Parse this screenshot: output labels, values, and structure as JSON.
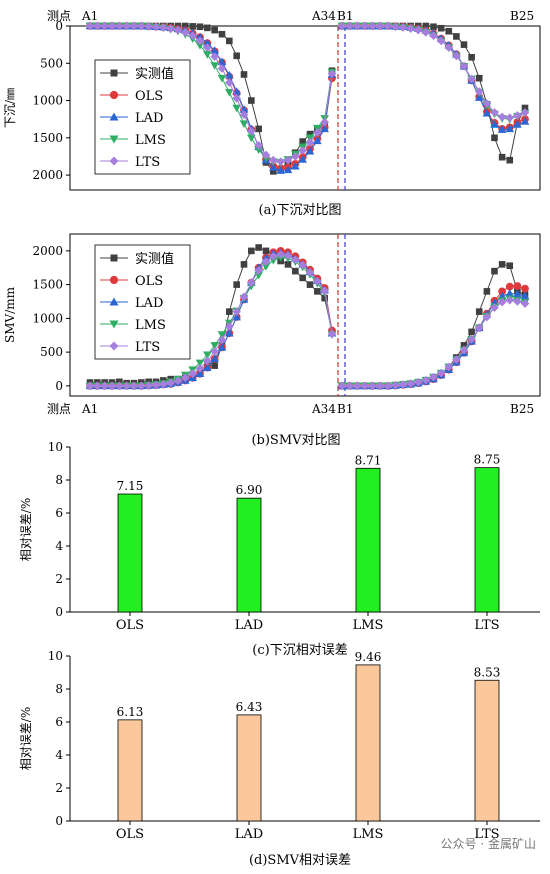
{
  "colors": {
    "measured": "#404040",
    "OLS": "#e0393b",
    "LAD": "#2a66d4",
    "LMS": "#2eae62",
    "LTS": "#a67fde",
    "bar_c": "#22ee22",
    "bar_d": "#fac89a",
    "dash_red": "#d23b3b",
    "dash_blue": "#4a4ac8"
  },
  "watermark": "公众号 · 金属矿山",
  "chart_data": [
    {
      "id": "a",
      "type": "line",
      "caption": "(a)下沉对比图",
      "ylabel": "下沉/㎜",
      "ylim": [
        0,
        2200
      ],
      "y_inverted": true,
      "yticks": [
        0,
        500,
        1000,
        1500,
        2000
      ],
      "point_label": "测点",
      "axis_points": {
        "start": "A1",
        "mid": "A34",
        "mid2": "B1",
        "end": "B25"
      },
      "legend": [
        "实测值",
        "OLS",
        "LAD",
        "LMS",
        "LTS"
      ],
      "series": [
        {
          "name": "实测值",
          "A": [
            0,
            0,
            0,
            0,
            0,
            0,
            0,
            0,
            0,
            0,
            0,
            0,
            0,
            0,
            5,
            10,
            25,
            55,
            110,
            200,
            400,
            650,
            1000,
            1380,
            1830,
            1950,
            1920,
            1820,
            1700,
            1550,
            1450,
            1380,
            1320,
            600
          ],
          "B": [
            0,
            0,
            0,
            0,
            0,
            0,
            0,
            0,
            0,
            0,
            0,
            0,
            10,
            30,
            70,
            140,
            250,
            420,
            700,
            1050,
            1500,
            1760,
            1800,
            1300,
            1100
          ]
        },
        {
          "name": "OLS",
          "A": [
            0,
            0,
            0,
            0,
            0,
            0,
            0,
            0,
            5,
            10,
            15,
            25,
            40,
            60,
            100,
            150,
            230,
            340,
            490,
            680,
            900,
            1130,
            1390,
            1620,
            1790,
            1880,
            1910,
            1900,
            1850,
            1760,
            1650,
            1510,
            1360,
            700
          ],
          "B": [
            0,
            0,
            0,
            0,
            0,
            0,
            0,
            5,
            10,
            20,
            35,
            60,
            100,
            170,
            260,
            380,
            540,
            730,
            950,
            1150,
            1300,
            1380,
            1360,
            1290,
            1250
          ]
        },
        {
          "name": "LAD",
          "A": [
            0,
            0,
            0,
            0,
            0,
            0,
            0,
            0,
            5,
            10,
            15,
            25,
            40,
            60,
            100,
            150,
            230,
            330,
            480,
            660,
            880,
            1120,
            1380,
            1620,
            1800,
            1900,
            1940,
            1930,
            1880,
            1790,
            1680,
            1540,
            1380,
            650
          ],
          "B": [
            0,
            0,
            0,
            0,
            0,
            0,
            0,
            5,
            10,
            20,
            35,
            60,
            100,
            170,
            260,
            380,
            540,
            730,
            960,
            1170,
            1320,
            1390,
            1380,
            1320,
            1280
          ]
        },
        {
          "name": "LMS",
          "A": [
            0,
            0,
            0,
            0,
            0,
            0,
            0,
            0,
            5,
            15,
            25,
            45,
            70,
            110,
            170,
            260,
            380,
            530,
            700,
            890,
            1100,
            1310,
            1500,
            1660,
            1770,
            1820,
            1830,
            1790,
            1720,
            1620,
            1500,
            1370,
            1240,
            620
          ],
          "B": [
            0,
            0,
            0,
            0,
            0,
            0,
            0,
            10,
            20,
            35,
            55,
            85,
            130,
            200,
            290,
            400,
            540,
            710,
            890,
            1060,
            1180,
            1240,
            1250,
            1210,
            1170
          ]
        },
        {
          "name": "LTS",
          "A": [
            0,
            0,
            0,
            0,
            0,
            0,
            0,
            0,
            5,
            12,
            20,
            35,
            55,
            85,
            130,
            200,
            290,
            410,
            570,
            760,
            970,
            1190,
            1410,
            1600,
            1730,
            1800,
            1820,
            1800,
            1750,
            1670,
            1560,
            1430,
            1290,
            640
          ],
          "B": [
            0,
            0,
            0,
            0,
            0,
            0,
            0,
            10,
            20,
            35,
            55,
            85,
            130,
            200,
            290,
            400,
            540,
            710,
            880,
            1040,
            1160,
            1220,
            1230,
            1200,
            1160
          ]
        }
      ]
    },
    {
      "id": "b",
      "type": "line",
      "caption": "(b)SMV对比图",
      "ylabel": "SMV/mm",
      "ylim": [
        -150,
        2250
      ],
      "yticks": [
        0,
        500,
        1000,
        1500,
        2000
      ],
      "point_label": "测点",
      "axis_points": {
        "start": "A1",
        "mid": "A34",
        "mid2": "B1",
        "end": "B25"
      },
      "legend": [
        "实测值",
        "OLS",
        "LAD",
        "LMS",
        "LTS"
      ],
      "series": [
        {
          "name": "实测值",
          "A": [
            50,
            50,
            50,
            50,
            60,
            40,
            40,
            50,
            60,
            60,
            80,
            100,
            100,
            120,
            150,
            200,
            300,
            300,
            600,
            1100,
            1500,
            1800,
            2000,
            2050,
            2000,
            1950,
            1850,
            1800,
            1700,
            1600,
            1500,
            1400,
            1300,
            800
          ],
          "B": [
            0,
            0,
            0,
            0,
            0,
            0,
            0,
            10,
            20,
            30,
            50,
            80,
            120,
            180,
            280,
            420,
            600,
            800,
            1100,
            1400,
            1700,
            1800,
            1780,
            1400,
            1350
          ]
        },
        {
          "name": "OLS",
          "A": [
            0,
            0,
            0,
            0,
            0,
            0,
            0,
            0,
            5,
            10,
            20,
            30,
            50,
            80,
            120,
            180,
            270,
            400,
            570,
            780,
            1020,
            1280,
            1530,
            1750,
            1900,
            1980,
            2000,
            1980,
            1920,
            1830,
            1720,
            1590,
            1450,
            820
          ],
          "B": [
            0,
            0,
            0,
            0,
            0,
            0,
            0,
            5,
            15,
            25,
            40,
            65,
            100,
            160,
            240,
            350,
            490,
            660,
            860,
            1070,
            1260,
            1400,
            1470,
            1480,
            1440
          ]
        },
        {
          "name": "LAD",
          "A": [
            0,
            0,
            0,
            0,
            0,
            0,
            0,
            0,
            5,
            10,
            20,
            30,
            50,
            80,
            120,
            180,
            270,
            400,
            570,
            780,
            1020,
            1280,
            1530,
            1750,
            1890,
            1960,
            1970,
            1950,
            1890,
            1800,
            1690,
            1560,
            1420,
            780
          ],
          "B": [
            0,
            0,
            0,
            0,
            0,
            0,
            0,
            5,
            15,
            25,
            40,
            65,
            100,
            160,
            240,
            350,
            490,
            660,
            860,
            1060,
            1230,
            1330,
            1370,
            1360,
            1330
          ]
        },
        {
          "name": "LMS",
          "A": [
            0,
            0,
            0,
            0,
            0,
            0,
            0,
            0,
            10,
            20,
            35,
            60,
            100,
            160,
            240,
            340,
            460,
            600,
            760,
            930,
            1110,
            1300,
            1480,
            1640,
            1770,
            1860,
            1900,
            1890,
            1840,
            1760,
            1650,
            1520,
            1380,
            760
          ],
          "B": [
            0,
            0,
            0,
            0,
            0,
            0,
            0,
            10,
            20,
            35,
            55,
            85,
            130,
            190,
            280,
            390,
            530,
            690,
            860,
            1030,
            1170,
            1260,
            1290,
            1270,
            1240
          ]
        },
        {
          "name": "LTS",
          "A": [
            0,
            0,
            0,
            0,
            0,
            0,
            0,
            0,
            5,
            15,
            25,
            45,
            75,
            120,
            180,
            260,
            370,
            510,
            680,
            880,
            1100,
            1320,
            1530,
            1710,
            1840,
            1920,
            1950,
            1930,
            1870,
            1790,
            1680,
            1550,
            1410,
            770
          ],
          "B": [
            0,
            0,
            0,
            0,
            0,
            0,
            0,
            10,
            20,
            35,
            55,
            85,
            130,
            190,
            280,
            390,
            530,
            690,
            860,
            1020,
            1160,
            1240,
            1270,
            1250,
            1220
          ]
        }
      ]
    },
    {
      "id": "c",
      "type": "bar",
      "caption": "(c)下沉相对误差",
      "ylabel": "相对误差/%",
      "ylim": [
        0,
        10
      ],
      "yticks": [
        0,
        2,
        4,
        6,
        8,
        10
      ],
      "categories": [
        "OLS",
        "LAD",
        "LMS",
        "LTS"
      ],
      "values": [
        7.15,
        6.9,
        8.71,
        8.75
      ],
      "labels": [
        "7.15",
        "6.90",
        "8.71",
        "8.75"
      ]
    },
    {
      "id": "d",
      "type": "bar",
      "caption": "(d)SMV相对误差",
      "ylabel": "相对误差/%",
      "ylim": [
        0,
        10
      ],
      "yticks": [
        0,
        2,
        4,
        6,
        8,
        10
      ],
      "categories": [
        "OLS",
        "LAD",
        "LMS",
        "LTS"
      ],
      "values": [
        6.13,
        6.43,
        9.46,
        8.53
      ],
      "labels": [
        "6.13",
        "6.43",
        "9.46",
        "8.53"
      ]
    }
  ]
}
